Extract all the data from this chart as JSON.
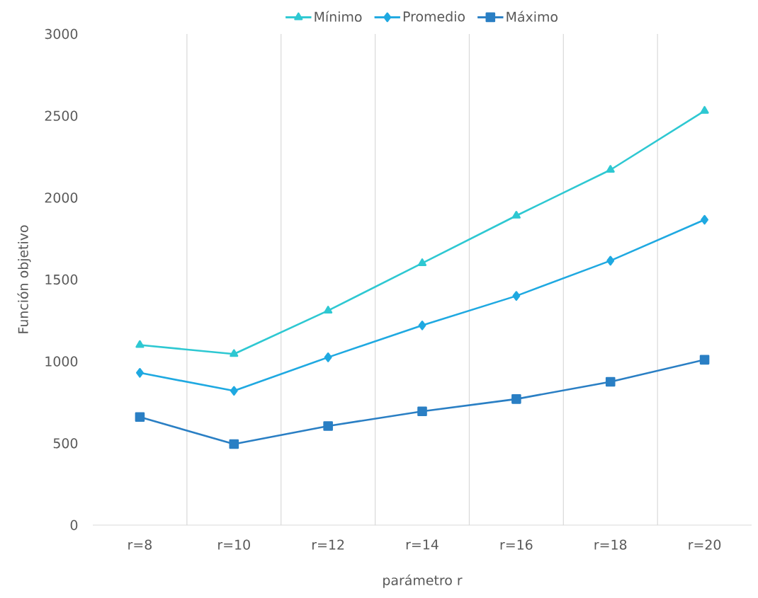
{
  "chart_data": {
    "type": "line",
    "xlabel": "parámetro  r",
    "ylabel": "Función objetivo",
    "categories": [
      "r=8",
      "r=10",
      "r=12",
      "r=14",
      "r=16",
      "r=18",
      "r=20"
    ],
    "series": [
      {
        "name": "Mínimo",
        "color": "#2ec8d2",
        "marker": "triangle",
        "values": [
          1100,
          1045,
          1310,
          1600,
          1890,
          2170,
          2530
        ]
      },
      {
        "name": "Promedio",
        "color": "#1fa9e1",
        "marker": "diamond",
        "values": [
          930,
          820,
          1025,
          1220,
          1400,
          1615,
          1865
        ]
      },
      {
        "name": "Máximo",
        "color": "#2a7fc4",
        "marker": "square",
        "values": [
          660,
          495,
          605,
          695,
          770,
          875,
          1010
        ]
      }
    ],
    "ylim": [
      0,
      3000
    ],
    "yticks": [
      0,
      500,
      1000,
      1500,
      2000,
      2500,
      3000
    ],
    "grid": "x",
    "legend": "top",
    "line_style": "solid"
  }
}
